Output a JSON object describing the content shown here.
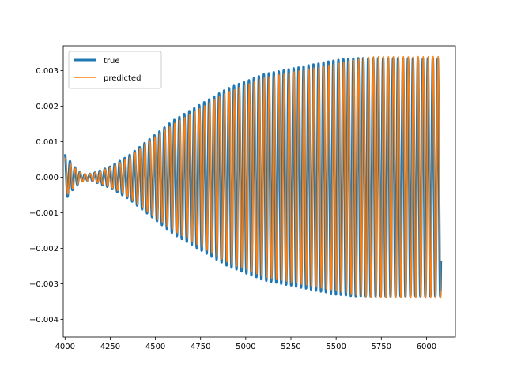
{
  "chart_data": {
    "type": "line",
    "title": "",
    "xlabel": "",
    "ylabel": "",
    "xlim": [
      3990,
      6160
    ],
    "ylim": [
      -0.0045,
      0.0037
    ],
    "xticks": [
      4000,
      4250,
      4500,
      4750,
      5000,
      5250,
      5500,
      5750,
      6000
    ],
    "xtick_labels": [
      "4000",
      "4250",
      "4500",
      "4750",
      "5000",
      "5250",
      "5500",
      "5750",
      "6000"
    ],
    "yticks": [
      -0.004,
      -0.003,
      -0.002,
      -0.001,
      0.0,
      0.001,
      0.002,
      0.003
    ],
    "ytick_labels": [
      "−0.004",
      "−0.003",
      "−0.002",
      "−0.001",
      "0.000",
      "0.001",
      "0.002",
      "0.003"
    ],
    "grid": false,
    "legend_position": "top-left",
    "x_range": [
      4000,
      6080
    ],
    "oscillation_period": 27.5,
    "series": [
      {
        "name": "true",
        "color": "#1f77b4",
        "line_width": "thick",
        "amplitude_envelope": {
          "x": [
            4000,
            4020,
            4050,
            4080,
            4110,
            4150,
            4200,
            4250,
            4300,
            4350,
            4400,
            4450,
            4500,
            4600,
            4700,
            4800,
            4900,
            5000,
            5100,
            5200,
            5300,
            5400,
            5500,
            5600,
            5700,
            5800,
            5900,
            6000,
            6080
          ],
          "values": [
            0.00065,
            0.0005,
            0.0003,
            0.00015,
            8e-05,
            0.0001,
            0.0002,
            0.0003,
            0.00045,
            0.0006,
            0.0008,
            0.001,
            0.0012,
            0.0016,
            0.0019,
            0.0022,
            0.0025,
            0.0027,
            0.0029,
            0.003,
            0.0031,
            0.0032,
            0.0033,
            0.00335,
            0.00335,
            0.00335,
            0.00335,
            0.00335,
            0.00335
          ]
        }
      },
      {
        "name": "predicted",
        "color": "#ff7f0e",
        "line_width": "normal",
        "amplitude_envelope": {
          "x": [
            4000,
            4020,
            4050,
            4080,
            4110,
            4150,
            4200,
            4250,
            4300,
            4350,
            4400,
            4450,
            4500,
            4600,
            4700,
            4800,
            4900,
            5000,
            5100,
            5200,
            5300,
            5400,
            5500,
            5600,
            5700,
            5800,
            5900,
            6000,
            6080
          ],
          "values": [
            0.00055,
            0.00045,
            0.00028,
            0.00015,
            0.0001,
            0.0001,
            0.00018,
            0.00028,
            0.0004,
            0.00055,
            0.00075,
            0.00095,
            0.00115,
            0.0015,
            0.0018,
            0.0021,
            0.0024,
            0.0026,
            0.0028,
            0.0029,
            0.003,
            0.0031,
            0.0032,
            0.0033,
            0.0034,
            0.0034,
            0.0034,
            0.0034,
            0.0034
          ]
        }
      }
    ]
  }
}
